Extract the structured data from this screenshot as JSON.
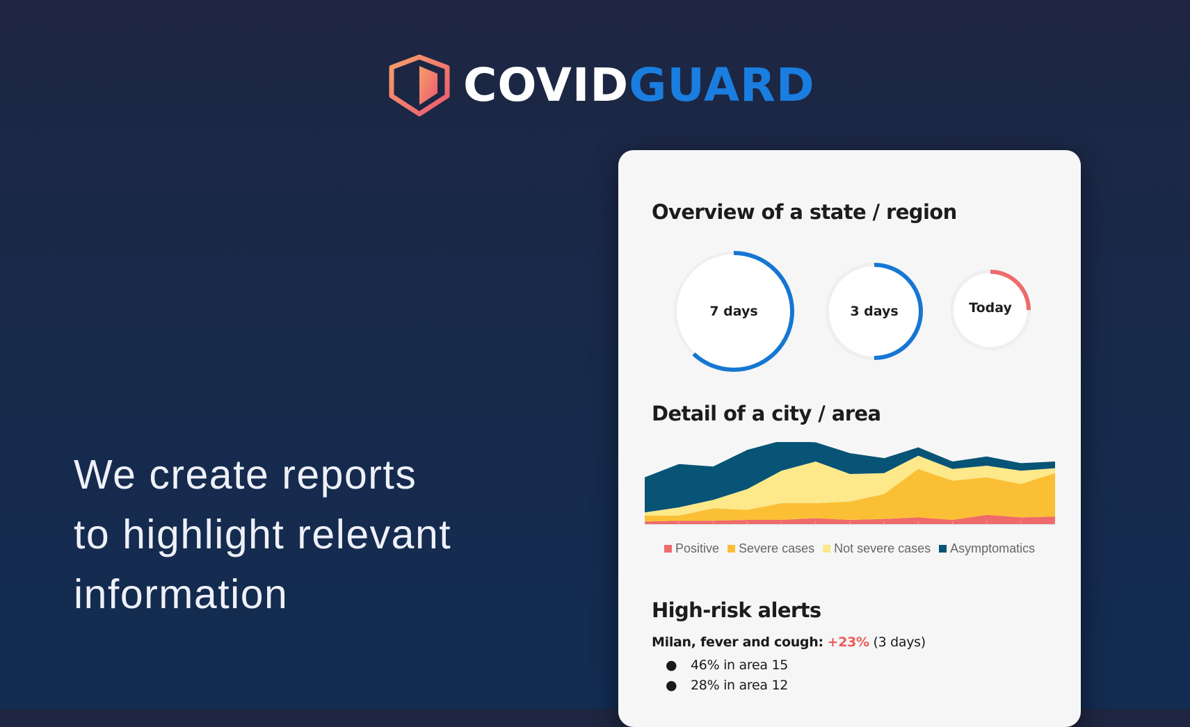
{
  "brand": {
    "name_part1": "COVID",
    "name_part2": "GUARD",
    "colors": {
      "white": "#ffffff",
      "blue": "#1a7ee0",
      "shield_gradient": [
        "#f79a6a",
        "#ee5a6f"
      ]
    }
  },
  "tagline": [
    "We create reports",
    "to highlight relevant",
    "information"
  ],
  "card": {
    "overview": {
      "title": "Overview of a state / region",
      "gauges": [
        {
          "label": "7 days",
          "fraction": 0.62,
          "color": "#1677d2"
        },
        {
          "label": "3 days",
          "fraction": 0.5,
          "color": "#1677d2"
        },
        {
          "label": "Today",
          "fraction": 0.25,
          "color": "#ee6b6b"
        }
      ]
    },
    "detail": {
      "title": "Detail of a city / area",
      "legend": [
        {
          "label": "Positive",
          "color": "#ef6a6a"
        },
        {
          "label": "Severe cases",
          "color": "#fbbf35"
        },
        {
          "label": "Not severe cases",
          "color": "#fde88a"
        },
        {
          "label": "Asymptomatics",
          "color": "#075476"
        }
      ]
    },
    "alerts": {
      "title": "High-risk alerts",
      "headline_strong": "Milan, fever and cough:",
      "headline_pct": "+23%",
      "headline_tail": "(3 days)",
      "bullets": [
        "46% in area 15",
        "28% in area 12"
      ]
    }
  },
  "chart_data": {
    "type": "area",
    "stacked": true,
    "title": "",
    "xlabel": "",
    "ylabel": "",
    "x": [
      1,
      2,
      3,
      4,
      5,
      6,
      7,
      8,
      9,
      10,
      11,
      12,
      13
    ],
    "ylim": [
      0,
      100
    ],
    "series": [
      {
        "name": "Positive",
        "values": [
          3,
          4,
          4,
          5,
          5,
          7,
          5,
          6,
          8,
          5,
          11,
          8,
          9
        ]
      },
      {
        "name": "Severe cases",
        "values": [
          7,
          6,
          15,
          12,
          20,
          18,
          22,
          30,
          58,
          47,
          45,
          40,
          52
        ]
      },
      {
        "name": "Not severe cases",
        "values": [
          4,
          10,
          10,
          25,
          39,
          50,
          33,
          25,
          16,
          14,
          14,
          16,
          6
        ]
      },
      {
        "name": "Asymptomatics",
        "values": [
          42,
          52,
          40,
          47,
          36,
          23,
          25,
          18,
          10,
          9,
          11,
          9,
          8
        ]
      }
    ]
  }
}
